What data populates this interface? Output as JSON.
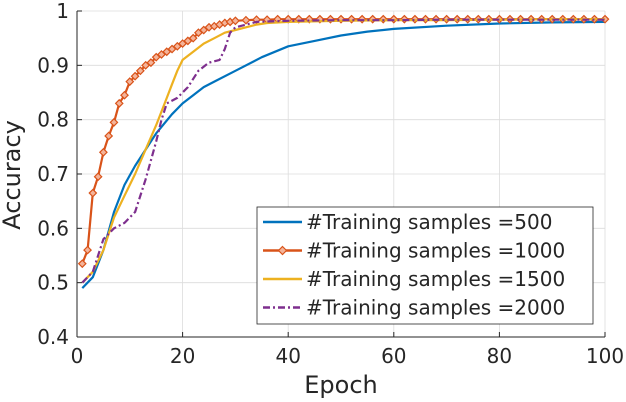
{
  "chart_data": {
    "type": "line",
    "title": "",
    "xlabel": "Epoch",
    "ylabel": "Accuracy",
    "xlim": [
      0,
      100
    ],
    "ylim": [
      0.4,
      1.0
    ],
    "xticks": [
      0,
      20,
      40,
      60,
      80,
      100
    ],
    "yticks": [
      0.4,
      0.5,
      0.6,
      0.7,
      0.8,
      0.9,
      1.0
    ],
    "xtick_labels": [
      "0",
      "20",
      "40",
      "60",
      "80",
      "100"
    ],
    "ytick_labels": [
      "0.4",
      "0.5",
      "0.6",
      "0.7",
      "0.8",
      "0.9",
      "1"
    ],
    "grid": true,
    "legend_position": "bottom-right",
    "series": [
      {
        "name": "#Training samples =500",
        "color": "#0072BD",
        "style": "solid",
        "marker": "none",
        "points": [
          [
            1,
            0.49
          ],
          [
            3,
            0.51
          ],
          [
            5,
            0.56
          ],
          [
            7,
            0.63
          ],
          [
            9,
            0.68
          ],
          [
            11,
            0.715
          ],
          [
            13,
            0.745
          ],
          [
            15,
            0.775
          ],
          [
            18,
            0.81
          ],
          [
            20,
            0.83
          ],
          [
            22,
            0.845
          ],
          [
            24,
            0.86
          ],
          [
            26,
            0.87
          ],
          [
            30,
            0.89
          ],
          [
            35,
            0.915
          ],
          [
            40,
            0.935
          ],
          [
            45,
            0.945
          ],
          [
            50,
            0.955
          ],
          [
            55,
            0.962
          ],
          [
            60,
            0.967
          ],
          [
            70,
            0.973
          ],
          [
            80,
            0.977
          ],
          [
            90,
            0.979
          ],
          [
            100,
            0.98
          ]
        ]
      },
      {
        "name": "#Training samples =1000",
        "color": "#D95319",
        "style": "solid",
        "marker": "diamond",
        "points": [
          [
            1,
            0.535
          ],
          [
            2,
            0.56
          ],
          [
            3,
            0.665
          ],
          [
            4,
            0.695
          ],
          [
            5,
            0.74
          ],
          [
            6,
            0.77
          ],
          [
            7,
            0.795
          ],
          [
            8,
            0.83
          ],
          [
            9,
            0.845
          ],
          [
            10,
            0.87
          ],
          [
            11,
            0.88
          ],
          [
            12,
            0.89
          ],
          [
            13,
            0.9
          ],
          [
            14,
            0.905
          ],
          [
            15,
            0.915
          ],
          [
            16,
            0.92
          ],
          [
            17,
            0.925
          ],
          [
            18,
            0.93
          ],
          [
            19,
            0.935
          ],
          [
            20,
            0.94
          ],
          [
            21,
            0.945
          ],
          [
            22,
            0.95
          ],
          [
            23,
            0.96
          ],
          [
            24,
            0.965
          ],
          [
            25,
            0.97
          ],
          [
            26,
            0.972
          ],
          [
            27,
            0.975
          ],
          [
            28,
            0.978
          ],
          [
            29,
            0.98
          ],
          [
            30,
            0.982
          ],
          [
            32,
            0.983
          ],
          [
            34,
            0.984
          ],
          [
            36,
            0.984
          ],
          [
            38,
            0.985
          ],
          [
            40,
            0.985
          ],
          [
            42,
            0.985
          ],
          [
            44,
            0.985
          ],
          [
            46,
            0.985
          ],
          [
            48,
            0.985
          ],
          [
            50,
            0.985
          ],
          [
            52,
            0.985
          ],
          [
            54,
            0.985
          ],
          [
            56,
            0.985
          ],
          [
            58,
            0.985
          ],
          [
            60,
            0.985
          ],
          [
            62,
            0.985
          ],
          [
            64,
            0.985
          ],
          [
            66,
            0.985
          ],
          [
            68,
            0.985
          ],
          [
            70,
            0.985
          ],
          [
            72,
            0.985
          ],
          [
            74,
            0.985
          ],
          [
            76,
            0.985
          ],
          [
            78,
            0.985
          ],
          [
            80,
            0.985
          ],
          [
            82,
            0.985
          ],
          [
            84,
            0.985
          ],
          [
            86,
            0.985
          ],
          [
            88,
            0.985
          ],
          [
            90,
            0.985
          ],
          [
            92,
            0.985
          ],
          [
            94,
            0.985
          ],
          [
            96,
            0.985
          ],
          [
            98,
            0.985
          ],
          [
            100,
            0.985
          ]
        ]
      },
      {
        "name": "#Training samples =1500",
        "color": "#EDB120",
        "style": "solid",
        "marker": "none",
        "points": [
          [
            1,
            0.5
          ],
          [
            3,
            0.52
          ],
          [
            5,
            0.56
          ],
          [
            7,
            0.62
          ],
          [
            9,
            0.66
          ],
          [
            11,
            0.7
          ],
          [
            13,
            0.745
          ],
          [
            15,
            0.79
          ],
          [
            17,
            0.84
          ],
          [
            18,
            0.865
          ],
          [
            19,
            0.89
          ],
          [
            20,
            0.91
          ],
          [
            22,
            0.925
          ],
          [
            24,
            0.94
          ],
          [
            26,
            0.95
          ],
          [
            28,
            0.96
          ],
          [
            30,
            0.965
          ],
          [
            32,
            0.97
          ],
          [
            34,
            0.975
          ],
          [
            36,
            0.978
          ],
          [
            40,
            0.98
          ],
          [
            50,
            0.982
          ],
          [
            60,
            0.983
          ],
          [
            70,
            0.983
          ],
          [
            80,
            0.984
          ],
          [
            90,
            0.985
          ],
          [
            100,
            0.985
          ]
        ]
      },
      {
        "name": "#Training samples =2000",
        "color": "#7E2F8E",
        "style": "dashdot",
        "marker": "none",
        "points": [
          [
            1,
            0.5
          ],
          [
            3,
            0.52
          ],
          [
            5,
            0.58
          ],
          [
            7,
            0.6
          ],
          [
            9,
            0.61
          ],
          [
            11,
            0.63
          ],
          [
            13,
            0.69
          ],
          [
            15,
            0.76
          ],
          [
            16,
            0.8
          ],
          [
            17,
            0.83
          ],
          [
            19,
            0.84
          ],
          [
            21,
            0.86
          ],
          [
            23,
            0.89
          ],
          [
            25,
            0.905
          ],
          [
            27,
            0.91
          ],
          [
            28,
            0.93
          ],
          [
            29,
            0.96
          ],
          [
            30,
            0.97
          ],
          [
            32,
            0.975
          ],
          [
            34,
            0.98
          ],
          [
            40,
            0.982
          ],
          [
            50,
            0.983
          ],
          [
            60,
            0.983
          ],
          [
            70,
            0.984
          ],
          [
            80,
            0.984
          ],
          [
            90,
            0.984
          ],
          [
            100,
            0.984
          ]
        ]
      }
    ]
  }
}
